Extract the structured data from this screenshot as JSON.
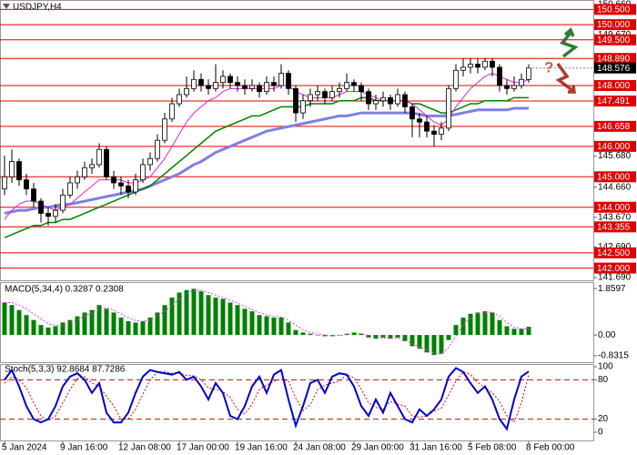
{
  "chart_data": [
    {
      "type": "candlestick",
      "title": "USDJPY,H4",
      "annotation": "?",
      "categories": [
        "5 Jan 2024",
        null,
        null,
        null,
        null,
        null,
        null,
        null,
        "9 Jan 16:00",
        null,
        null,
        null,
        null,
        null,
        null,
        null,
        "12 Jan 08:00",
        null,
        null,
        null,
        null,
        null,
        null,
        null,
        "17 Jan 00:00",
        null,
        null,
        null,
        null,
        null,
        null,
        null,
        "19 Jan 16:00",
        null,
        null,
        null,
        null,
        null,
        null,
        null,
        "24 Jan 08:00",
        null,
        null,
        null,
        null,
        null,
        null,
        null,
        "29 Jan 00:00",
        null,
        null,
        null,
        null,
        null,
        null,
        null,
        "31 Jan 16:00",
        null,
        null,
        null,
        null,
        null,
        null,
        null,
        "5 Feb 08:00",
        null,
        null,
        null,
        null,
        null,
        null,
        null,
        "8 Feb 00:00"
      ],
      "open": [
        144.6,
        145.0,
        145.5,
        144.9,
        144.6,
        144.2,
        143.8,
        143.7,
        143.9,
        144.4,
        144.8,
        145.0,
        145.3,
        145.4,
        145.9,
        145.0,
        144.8,
        144.7,
        144.5,
        144.9,
        145.4,
        145.6,
        146.2,
        146.9,
        147.4,
        147.7,
        147.9,
        148.2,
        148.0,
        147.9,
        148.1,
        148.3,
        148.1,
        148.0,
        147.9,
        148.0,
        147.8,
        148.1,
        148.0,
        148.4,
        147.9,
        147.1,
        147.5,
        147.7,
        147.8,
        147.6,
        147.8,
        147.9,
        148.1,
        148.0,
        147.8,
        147.4,
        147.5,
        147.6,
        147.4,
        147.7,
        147.3,
        146.9,
        146.8,
        146.5,
        146.4,
        146.6,
        147.9,
        148.5,
        148.6,
        148.7,
        148.6,
        148.8,
        148.6,
        148.0,
        147.9,
        148.0,
        148.2
      ],
      "high": [
        145.7,
        145.9,
        145.6,
        145.1,
        144.8,
        144.3,
        144.0,
        144.1,
        144.6,
        145.0,
        145.2,
        145.5,
        145.6,
        146.1,
        146.0,
        145.2,
        145.0,
        144.9,
        145.1,
        145.6,
        145.8,
        146.4,
        147.1,
        147.6,
        147.9,
        148.3,
        148.5,
        148.4,
        148.2,
        148.7,
        148.5,
        148.4,
        148.3,
        148.2,
        148.2,
        148.1,
        148.3,
        148.3,
        148.7,
        148.5,
        148.0,
        147.7,
        147.9,
        148.0,
        147.9,
        148.0,
        148.1,
        148.4,
        148.2,
        148.1,
        147.9,
        147.7,
        147.8,
        147.7,
        147.9,
        147.8,
        147.4,
        147.1,
        147.0,
        146.7,
        146.8,
        148.0,
        148.7,
        148.9,
        148.9,
        148.9,
        148.9,
        148.9,
        148.7,
        148.2,
        148.3,
        148.4,
        148.7
      ],
      "low": [
        144.4,
        144.8,
        144.7,
        144.4,
        144.0,
        143.5,
        143.4,
        143.5,
        143.8,
        144.3,
        144.6,
        144.9,
        145.1,
        145.3,
        144.9,
        144.6,
        144.4,
        144.3,
        144.4,
        144.8,
        145.2,
        145.5,
        146.1,
        146.8,
        147.3,
        147.6,
        147.8,
        147.8,
        147.7,
        147.8,
        147.9,
        147.9,
        147.8,
        147.7,
        147.8,
        147.6,
        147.7,
        147.8,
        147.9,
        147.7,
        146.8,
        146.9,
        147.3,
        147.5,
        147.4,
        147.5,
        147.6,
        147.8,
        147.8,
        147.5,
        147.2,
        147.2,
        147.3,
        147.2,
        147.3,
        147.1,
        146.3,
        146.3,
        146.3,
        146.0,
        146.2,
        146.5,
        147.8,
        148.3,
        148.4,
        148.4,
        148.5,
        148.3,
        147.8,
        147.7,
        147.8,
        147.9,
        148.1
      ],
      "close": [
        145.0,
        145.5,
        144.9,
        144.6,
        144.2,
        143.8,
        143.7,
        143.9,
        144.4,
        144.8,
        145.0,
        145.3,
        145.4,
        145.9,
        145.0,
        144.8,
        144.7,
        144.5,
        144.9,
        145.4,
        145.6,
        146.2,
        146.9,
        147.4,
        147.7,
        147.9,
        148.2,
        148.0,
        147.9,
        148.1,
        148.3,
        148.1,
        148.0,
        147.9,
        148.0,
        147.8,
        148.1,
        148.0,
        148.4,
        147.9,
        147.1,
        147.5,
        147.7,
        147.8,
        147.6,
        147.8,
        147.9,
        148.1,
        148.0,
        147.8,
        147.4,
        147.5,
        147.6,
        147.4,
        147.7,
        147.3,
        146.9,
        146.8,
        146.5,
        146.4,
        146.6,
        147.9,
        148.5,
        148.6,
        148.7,
        148.6,
        148.8,
        148.6,
        148.0,
        147.9,
        148.0,
        148.2,
        148.576
      ],
      "up_color": "#ffffff",
      "down_color": "#000000",
      "lines": [
        {
          "color": "#8080e0",
          "width": 3,
          "values": [
            143.8,
            143.85,
            143.9,
            143.9,
            143.95,
            144.0,
            144.0,
            144.05,
            144.1,
            144.1,
            144.15,
            144.2,
            144.25,
            144.3,
            144.35,
            144.4,
            144.45,
            144.5,
            144.55,
            144.6,
            144.7,
            144.8,
            144.9,
            145.0,
            145.1,
            145.25,
            145.4,
            145.5,
            145.65,
            145.8,
            145.9,
            146.0,
            146.1,
            146.2,
            146.3,
            146.4,
            146.5,
            146.55,
            146.6,
            146.65,
            146.7,
            146.75,
            146.8,
            146.85,
            146.9,
            146.95,
            147.0,
            147.0,
            147.05,
            147.1,
            147.1,
            147.1,
            147.1,
            147.1,
            147.1,
            147.1,
            147.1,
            147.05,
            147.0,
            147.0,
            147.0,
            147.0,
            147.05,
            147.1,
            147.15,
            147.2,
            147.2,
            147.2,
            147.2,
            147.2,
            147.25,
            147.25,
            147.25
          ]
        },
        {
          "color": "#008000",
          "width": 1.5,
          "values": [
            143.0,
            143.1,
            143.2,
            143.3,
            143.4,
            143.4,
            143.5,
            143.5,
            143.6,
            143.6,
            143.7,
            143.8,
            143.9,
            144.0,
            144.1,
            144.2,
            144.3,
            144.4,
            144.5,
            144.6,
            144.7,
            144.9,
            145.1,
            145.3,
            145.5,
            145.7,
            145.9,
            146.1,
            146.3,
            146.5,
            146.6,
            146.7,
            146.8,
            146.9,
            147.0,
            147.0,
            147.1,
            147.2,
            147.3,
            147.3,
            147.3,
            147.3,
            147.4,
            147.4,
            147.4,
            147.4,
            147.5,
            147.5,
            147.5,
            147.6,
            147.6,
            147.5,
            147.5,
            147.5,
            147.5,
            147.5,
            147.4,
            147.4,
            147.3,
            147.2,
            147.1,
            147.1,
            147.2,
            147.3,
            147.4,
            147.4,
            147.5,
            147.5,
            147.5,
            147.5,
            147.6,
            147.6,
            147.6
          ]
        },
        {
          "color": "#e020e0",
          "width": 1,
          "values": [
            143.6,
            143.9,
            144.1,
            144.2,
            144.2,
            144.1,
            144.0,
            143.9,
            144.0,
            144.1,
            144.3,
            144.5,
            144.7,
            144.9,
            144.9,
            144.9,
            144.9,
            144.8,
            144.8,
            144.9,
            145.0,
            145.3,
            145.6,
            146.0,
            146.4,
            146.8,
            147.1,
            147.3,
            147.5,
            147.6,
            147.8,
            147.9,
            147.9,
            147.9,
            147.9,
            147.9,
            147.9,
            147.9,
            148.0,
            148.0,
            147.8,
            147.7,
            147.6,
            147.6,
            147.6,
            147.6,
            147.7,
            147.8,
            147.8,
            147.8,
            147.7,
            147.6,
            147.5,
            147.5,
            147.5,
            147.5,
            147.4,
            147.2,
            147.0,
            146.8,
            146.7,
            146.9,
            147.3,
            147.6,
            147.9,
            148.1,
            148.3,
            148.4,
            148.3,
            148.2,
            148.1,
            148.1,
            148.2
          ]
        }
      ],
      "level_color": "#e00000",
      "levels": [
        {
          "value": 150.5,
          "label": "150.500"
        },
        {
          "value": 150.0,
          "label": "150.000"
        },
        {
          "value": 149.5,
          "label": "149.500"
        },
        {
          "value": 148.89,
          "label": "148.890"
        },
        {
          "value": 148.0,
          "label": "148.000"
        },
        {
          "value": 147.491,
          "label": "147.491"
        },
        {
          "value": 146.658,
          "label": "146.658"
        },
        {
          "value": 146.0,
          "label": "146.000"
        },
        {
          "value": 145.0,
          "label": "145.000"
        },
        {
          "value": 144.0,
          "label": "144.000"
        },
        {
          "value": 143.355,
          "label": "143.355"
        },
        {
          "value": 142.5,
          "label": "142.500"
        },
        {
          "value": 142.0,
          "label": "142.000"
        }
      ],
      "last_price": 148.576,
      "ylim": [
        141.6,
        150.81
      ],
      "yticks": [
        {
          "value": 150.66,
          "label": "150.660"
        },
        {
          "value": 149.67,
          "label": "149.670"
        },
        {
          "value": 145.68,
          "label": "145.680"
        },
        {
          "value": 144.66,
          "label": "144.660"
        },
        {
          "value": 143.67,
          "label": "143.670"
        },
        {
          "value": 142.69,
          "label": "142.690"
        },
        {
          "value": 141.69,
          "label": "141.690"
        }
      ]
    },
    {
      "type": "macd",
      "title": "MACD(5,34,4) 0.3287 0.2308",
      "color": "#008000",
      "signal_color": "#e040e0",
      "values": [
        1.3,
        1.2,
        1.0,
        0.8,
        0.6,
        0.4,
        0.3,
        0.35,
        0.5,
        0.6,
        0.75,
        0.9,
        1.0,
        1.2,
        1.05,
        0.9,
        0.7,
        0.55,
        0.5,
        0.55,
        0.7,
        0.9,
        1.2,
        1.5,
        1.7,
        1.8,
        1.85,
        1.75,
        1.6,
        1.5,
        1.45,
        1.3,
        1.2,
        1.05,
        0.95,
        0.8,
        0.75,
        0.7,
        0.7,
        0.5,
        0.2,
        0.1,
        0.05,
        0.0,
        -0.05,
        -0.05,
        0.0,
        0.05,
        0.1,
        0.05,
        -0.1,
        -0.15,
        -0.1,
        -0.15,
        -0.1,
        -0.25,
        -0.45,
        -0.55,
        -0.7,
        -0.8,
        -0.75,
        -0.2,
        0.4,
        0.7,
        0.85,
        0.9,
        0.95,
        0.9,
        0.6,
        0.35,
        0.25,
        0.25,
        0.3287
      ],
      "signal": [
        1.3,
        1.3,
        1.2,
        1.05,
        0.85,
        0.65,
        0.45,
        0.38,
        0.4,
        0.5,
        0.6,
        0.75,
        0.9,
        1.05,
        1.1,
        1.0,
        0.85,
        0.7,
        0.58,
        0.55,
        0.6,
        0.75,
        0.95,
        1.2,
        1.45,
        1.65,
        1.78,
        1.8,
        1.7,
        1.6,
        1.5,
        1.4,
        1.28,
        1.15,
        1.02,
        0.9,
        0.8,
        0.75,
        0.72,
        0.6,
        0.4,
        0.2,
        0.1,
        0.04,
        0.0,
        -0.03,
        -0.02,
        0.02,
        0.07,
        0.06,
        -0.02,
        -0.1,
        -0.12,
        -0.13,
        -0.12,
        -0.2,
        -0.35,
        -0.48,
        -0.62,
        -0.74,
        -0.76,
        -0.5,
        -0.05,
        0.4,
        0.7,
        0.85,
        0.9,
        0.92,
        0.75,
        0.5,
        0.32,
        0.25,
        0.2308
      ],
      "ylim": [
        -1.09,
        2.12
      ],
      "yticks": [
        1.8597,
        {
          "value": 0,
          "label": "0.00"
        },
        -0.8315
      ]
    },
    {
      "type": "stochastic",
      "title": "Stoch(5,3,3) 92.8684 87.7286",
      "k_color": "#0000cc",
      "d_color": "#e00000",
      "k": [
        80,
        95,
        70,
        40,
        20,
        15,
        20,
        40,
        70,
        85,
        90,
        80,
        60,
        75,
        30,
        15,
        15,
        30,
        60,
        85,
        95,
        92,
        90,
        88,
        92,
        80,
        85,
        70,
        50,
        75,
        60,
        25,
        20,
        40,
        70,
        85,
        60,
        88,
        95,
        50,
        10,
        40,
        75,
        80,
        60,
        85,
        90,
        88,
        70,
        40,
        25,
        50,
        30,
        60,
        40,
        20,
        15,
        35,
        25,
        35,
        50,
        85,
        98,
        92,
        75,
        60,
        70,
        50,
        20,
        5,
        50,
        85,
        92.8684
      ],
      "d": [
        75,
        85,
        80,
        68,
        45,
        25,
        18,
        25,
        45,
        65,
        82,
        85,
        75,
        70,
        55,
        40,
        20,
        20,
        35,
        58,
        80,
        92,
        92,
        90,
        90,
        87,
        86,
        80,
        68,
        65,
        62,
        53,
        35,
        28,
        43,
        65,
        72,
        78,
        81,
        78,
        52,
        33,
        42,
        65,
        72,
        75,
        78,
        88,
        83,
        66,
        45,
        38,
        35,
        47,
        43,
        40,
        25,
        23,
        25,
        32,
        37,
        57,
        78,
        92,
        88,
        76,
        68,
        60,
        47,
        25,
        15,
        45,
        87.7286
      ],
      "levels": [
        80,
        20
      ],
      "ylim": [
        -12.5,
        104.2
      ],
      "yticks": [
        100,
        80,
        20,
        0
      ]
    }
  ]
}
